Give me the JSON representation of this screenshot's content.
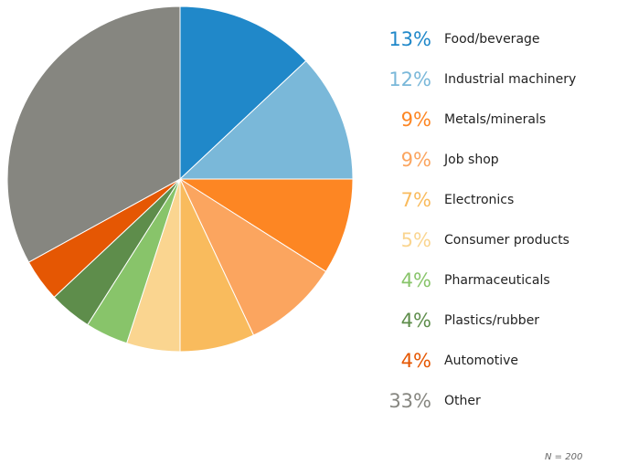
{
  "chart_data": {
    "type": "pie",
    "unit": "%",
    "slices": [
      {
        "label": "Food/beverage",
        "value": 13,
        "color": "#2088c9"
      },
      {
        "label": "Industrial machinery",
        "value": 12,
        "color": "#7ab8d9"
      },
      {
        "label": "Metals/minerals",
        "value": 9,
        "color": "#fd8623"
      },
      {
        "label": "Job shop",
        "value": 9,
        "color": "#fba55f"
      },
      {
        "label": "Electronics",
        "value": 7,
        "color": "#f9bb5d"
      },
      {
        "label": "Consumer products",
        "value": 5,
        "color": "#fad590"
      },
      {
        "label": "Pharmaceuticals",
        "value": 4,
        "color": "#88c46a"
      },
      {
        "label": "Plastics/rubber",
        "value": 4,
        "color": "#5e8d4b"
      },
      {
        "label": "Automotive",
        "value": 4,
        "color": "#e55703"
      },
      {
        "label": "Other",
        "value": 33,
        "color": "#868680"
      }
    ],
    "legend_position": "right",
    "note": "N = 200"
  }
}
